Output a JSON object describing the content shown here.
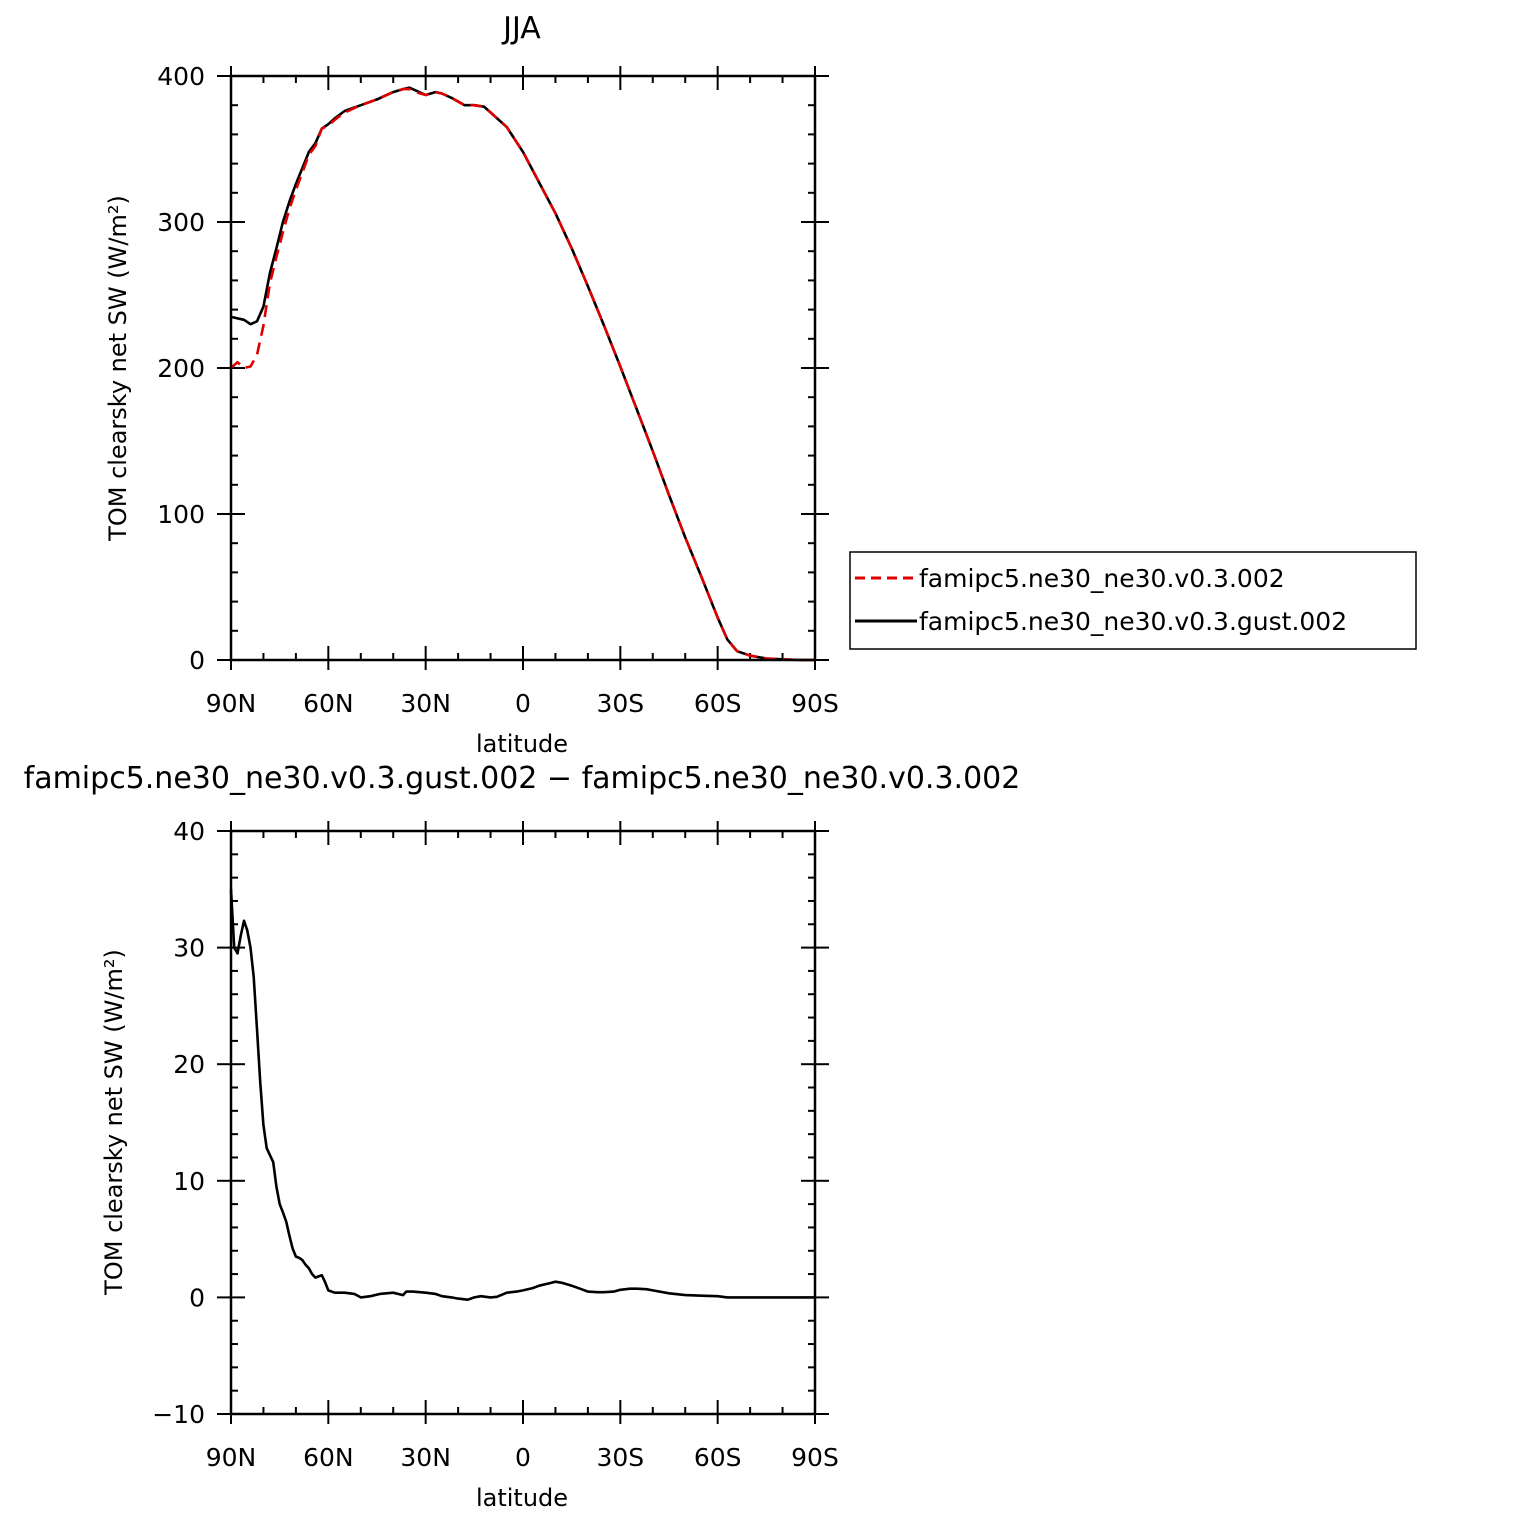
{
  "chart_data": [
    {
      "type": "line",
      "title": "JJA",
      "xlabel": "latitude",
      "ylabel": "TOM clearsky net SW (W/m²)",
      "xlim": [
        90,
        -90
      ],
      "ylim": [
        0,
        400
      ],
      "x_tick_labels": [
        "90N",
        "60N",
        "30N",
        "0",
        "30S",
        "60S",
        "90S"
      ],
      "y_tick_labels": [
        "0",
        "100",
        "200",
        "300",
        "400"
      ],
      "legend_position": "right",
      "series": [
        {
          "name": "famipc5.ne30_ne30.v0.3.002",
          "color": "#e00000",
          "style": "dashed",
          "x": [
            90,
            88,
            86,
            84,
            82,
            80,
            78,
            76,
            74,
            72,
            70,
            68,
            66,
            64,
            62,
            60,
            58,
            55,
            50,
            45,
            40,
            37,
            35,
            33,
            30,
            27,
            25,
            22,
            18,
            15,
            12,
            10,
            5,
            0,
            -5,
            -10,
            -15,
            -20,
            -25,
            -30,
            -35,
            -40,
            -45,
            -50,
            -55,
            -60,
            -63,
            -66,
            -70,
            -75,
            -80,
            -85,
            -90
          ],
          "y": [
            200,
            204,
            200,
            201,
            209,
            229,
            258,
            276,
            293,
            309,
            322,
            334,
            346,
            352,
            364,
            366,
            370,
            375,
            380,
            384,
            389,
            391,
            391,
            389,
            387,
            389,
            388,
            385,
            380,
            380,
            379,
            375,
            365,
            348,
            327,
            306,
            282,
            256,
            229,
            201,
            172,
            143,
            113,
            84,
            57,
            29,
            14,
            6,
            3,
            1,
            0.5,
            0,
            0
          ]
        },
        {
          "name": "famipc5.ne30_ne30.v0.3.gust.002",
          "color": "#000000",
          "style": "solid",
          "x": [
            90,
            88,
            86,
            84,
            82,
            80,
            78,
            76,
            74,
            72,
            70,
            68,
            66,
            64,
            62,
            60,
            58,
            55,
            50,
            45,
            40,
            37,
            35,
            33,
            30,
            27,
            25,
            22,
            18,
            15,
            12,
            10,
            5,
            0,
            -5,
            -10,
            -15,
            -20,
            -25,
            -30,
            -35,
            -40,
            -45,
            -50,
            -55,
            -60,
            -63,
            -66,
            -70,
            -75,
            -80,
            -85,
            -90
          ],
          "y": [
            235,
            234,
            233,
            230,
            232,
            242,
            265,
            282,
            300,
            314,
            326,
            337,
            348,
            354,
            364,
            367,
            371,
            376,
            380,
            384,
            389,
            391,
            392,
            390,
            387,
            389,
            388,
            385,
            380,
            380,
            379,
            375,
            365,
            348,
            327,
            306,
            282,
            256,
            229,
            201,
            172,
            143,
            113,
            84,
            57,
            29,
            14,
            6,
            3,
            1,
            0.5,
            0,
            0
          ]
        }
      ]
    },
    {
      "type": "line",
      "title": "famipc5.ne30_ne30.v0.3.gust.002 − famipc5.ne30_ne30.v0.3.002",
      "xlabel": "latitude",
      "ylabel": "TOM clearsky net SW (W/m²)",
      "xlim": [
        90,
        -90
      ],
      "ylim": [
        -10,
        40
      ],
      "x_tick_labels": [
        "90N",
        "60N",
        "30N",
        "0",
        "30S",
        "60S",
        "90S"
      ],
      "y_tick_labels": [
        "−10",
        "0",
        "10",
        "20",
        "30",
        "40"
      ],
      "series": [
        {
          "color": "#000000",
          "style": "solid",
          "x": [
            90,
            89,
            88,
            87,
            86,
            85,
            84,
            83,
            82,
            81,
            80,
            79,
            78,
            77,
            76,
            75,
            74,
            73,
            72,
            71,
            70,
            69,
            68,
            67,
            66,
            65,
            64,
            63,
            62,
            61,
            60,
            58,
            55,
            52,
            50,
            47,
            44,
            40,
            37,
            36,
            34,
            30,
            27,
            25,
            22,
            20,
            17,
            15,
            13,
            10,
            8,
            5,
            2,
            0,
            -3,
            -5,
            -8,
            -10,
            -12,
            -15,
            -18,
            -20,
            -23,
            -25,
            -28,
            -30,
            -33,
            -35,
            -38,
            -40,
            -45,
            -50,
            -55,
            -60,
            -63,
            -65,
            -70,
            -75,
            -80,
            -85,
            -90
          ],
          "y": [
            35,
            30,
            29.5,
            31,
            32.3,
            31.5,
            30,
            27.5,
            23,
            18.5,
            14.8,
            12.8,
            12.2,
            11.6,
            9.5,
            8.0,
            7.3,
            6.5,
            5.3,
            4.2,
            3.5,
            3.4,
            3.2,
            2.8,
            2.5,
            2.0,
            1.7,
            1.8,
            1.9,
            1.3,
            0.6,
            0.4,
            0.4,
            0.3,
            0.0,
            0.1,
            0.3,
            0.4,
            0.2,
            0.5,
            0.5,
            0.4,
            0.3,
            0.1,
            0.0,
            -0.1,
            -0.2,
            0.0,
            0.1,
            0.0,
            0.05,
            0.4,
            0.5,
            0.6,
            0.8,
            1.0,
            1.2,
            1.35,
            1.25,
            1.0,
            0.7,
            0.5,
            0.45,
            0.45,
            0.5,
            0.65,
            0.75,
            0.75,
            0.7,
            0.6,
            0.35,
            0.2,
            0.15,
            0.1,
            0.0,
            0.0,
            0.0,
            0.0,
            0.0,
            0.0,
            0.0
          ]
        }
      ]
    }
  ]
}
